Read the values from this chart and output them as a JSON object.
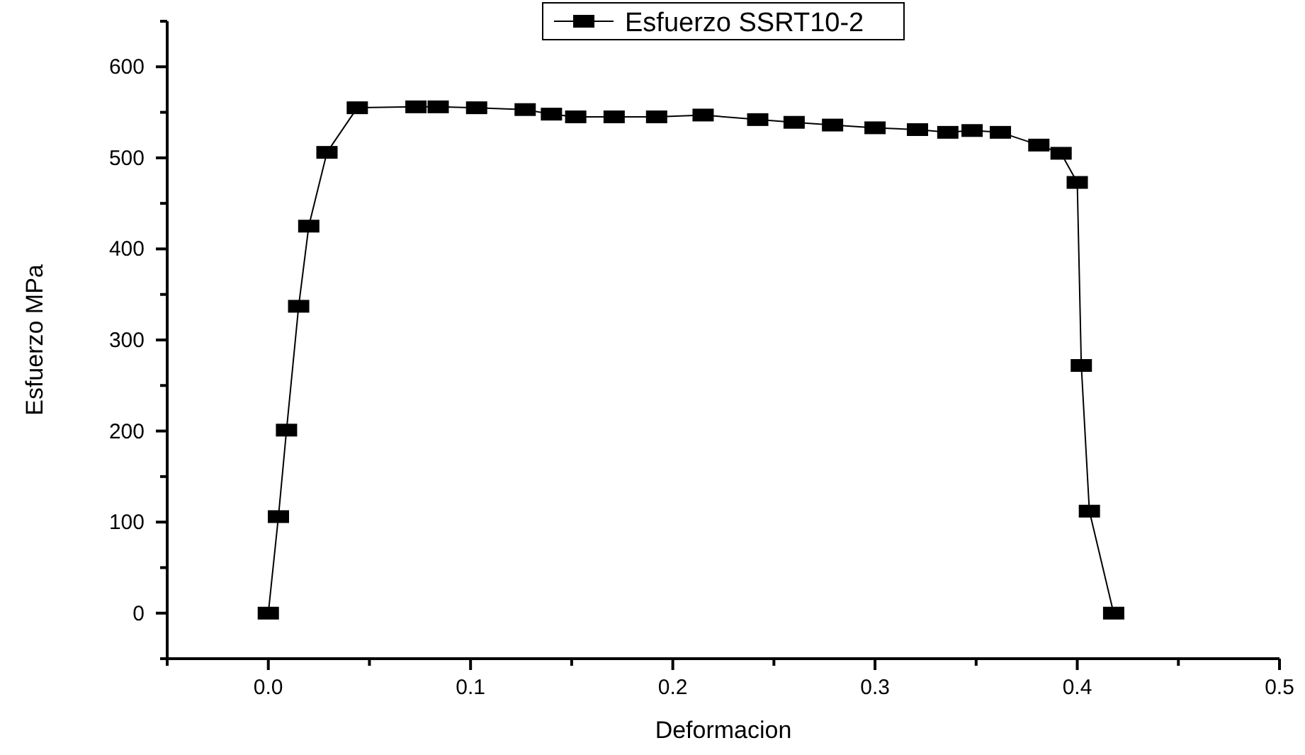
{
  "chart_data": {
    "type": "line",
    "xlabel": "Deformacion",
    "ylabel": "Esfuerzo MPa",
    "xlim": [
      -0.05,
      0.5
    ],
    "xticks": [
      {
        "value": -0.05,
        "label": null
      },
      {
        "value": 0,
        "label": "0.0"
      },
      {
        "value": 0.05,
        "label": null
      },
      0.1,
      {
        "value": 0.15,
        "label": null
      },
      0.2,
      {
        "value": 0.25,
        "label": null
      },
      0.3,
      {
        "value": 0.35,
        "label": null
      },
      0.4,
      {
        "value": 0.45,
        "label": null
      },
      0.5
    ],
    "ylim": [
      -50,
      650
    ],
    "yticks": [
      {
        "value": -50,
        "label": null
      },
      0,
      {
        "value": 50,
        "label": null
      },
      100,
      {
        "value": 150,
        "label": null
      },
      200,
      {
        "value": 250,
        "label": null
      },
      300,
      {
        "value": 350,
        "label": null
      },
      400,
      {
        "value": 450,
        "label": null
      },
      500,
      {
        "value": 550,
        "label": null
      },
      600,
      {
        "value": 650,
        "label": null
      }
    ],
    "legend": "top",
    "marker": "square",
    "line_style": "solid",
    "grid": false,
    "series": [
      {
        "name": "Esfuerzo SSRT10-2",
        "color": "#000000",
        "x": [
          0,
          0.005,
          0.009,
          0.015,
          0.02,
          0.029,
          0.044,
          0.073,
          0.084,
          0.103,
          0.127,
          0.14,
          0.152,
          0.171,
          0.192,
          0.215,
          0.242,
          0.26,
          0.279,
          0.3,
          0.321,
          0.336,
          0.348,
          0.362,
          0.381,
          0.392,
          0.4,
          0.402,
          0.406,
          0.418
        ],
        "values": [
          0,
          106,
          201,
          337,
          425,
          506,
          555,
          556,
          556,
          555,
          553,
          548,
          545,
          545,
          545,
          547,
          542,
          539,
          536,
          533,
          531,
          528,
          530,
          528,
          514,
          505,
          473,
          272,
          112,
          0
        ]
      }
    ]
  }
}
